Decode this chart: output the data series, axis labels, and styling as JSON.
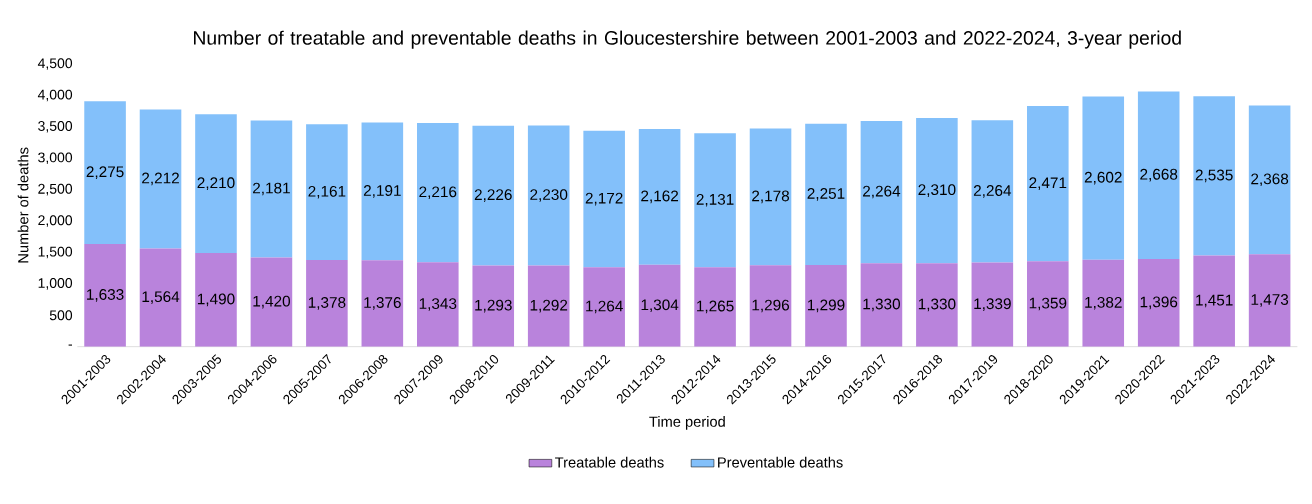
{
  "chart_data": {
    "type": "bar",
    "stacked": true,
    "title": "Number of treatable and preventable deaths in Gloucestershire between 2001-2003 and 2022-2024, 3-year period",
    "xlabel": "Time period",
    "ylabel": "Number of deaths",
    "categories": [
      "2001-2003",
      "2002-2004",
      "2003-2005",
      "2004-2006",
      "2005-2007",
      "2006-2008",
      "2007-2009",
      "2008-2010",
      "2009-2011",
      "2010-2012",
      "2011-2013",
      "2012-2014",
      "2013-2015",
      "2014-2016",
      "2015-2017",
      "2016-2018",
      "2017-2019",
      "2018-2020",
      "2019-2021",
      "2020-2022",
      "2021-2023",
      "2022-2024"
    ],
    "series": [
      {
        "name": "Treatable deaths",
        "color": "#b983dc",
        "values": [
          1633,
          1564,
          1490,
          1420,
          1378,
          1376,
          1343,
          1293,
          1292,
          1264,
          1304,
          1265,
          1296,
          1299,
          1330,
          1330,
          1339,
          1359,
          1382,
          1396,
          1451,
          1473
        ],
        "value_labels": [
          "1,633",
          "1,564",
          "1,490",
          "1,420",
          "1,378",
          "1,376",
          "1,343",
          "1,293",
          "1,292",
          "1,264",
          "1,304",
          "1,265",
          "1,296",
          "1,299",
          "1,330",
          "1,330",
          "1,339",
          "1,359",
          "1,382",
          "1,396",
          "1,451",
          "1,473"
        ]
      },
      {
        "name": "Preventable deaths",
        "color": "#83c0fa",
        "values": [
          2275,
          2212,
          2210,
          2181,
          2161,
          2191,
          2216,
          2226,
          2230,
          2172,
          2162,
          2131,
          2178,
          2251,
          2264,
          2310,
          2264,
          2471,
          2602,
          2668,
          2535,
          2368
        ],
        "value_labels": [
          "2,275",
          "2,212",
          "2,210",
          "2,181",
          "2,161",
          "2,191",
          "2,216",
          "2,226",
          "2,230",
          "2,172",
          "2,162",
          "2,131",
          "2,178",
          "2,251",
          "2,264",
          "2,310",
          "2,264",
          "2,471",
          "2,602",
          "2,668",
          "2,535",
          "2,368"
        ]
      }
    ],
    "ylim": [
      0,
      4500
    ],
    "yticks": [
      {
        "value": 0,
        "label": "-"
      },
      {
        "value": 500,
        "label": "500"
      },
      {
        "value": 1000,
        "label": "1,000"
      },
      {
        "value": 1500,
        "label": "1,500"
      },
      {
        "value": 2000,
        "label": "2,000"
      },
      {
        "value": 2500,
        "label": "2,500"
      },
      {
        "value": 3000,
        "label": "3,000"
      },
      {
        "value": 3500,
        "label": "3,500"
      },
      {
        "value": 4000,
        "label": "4,000"
      },
      {
        "value": 4500,
        "label": "4,500"
      }
    ],
    "legend": "bottom"
  }
}
